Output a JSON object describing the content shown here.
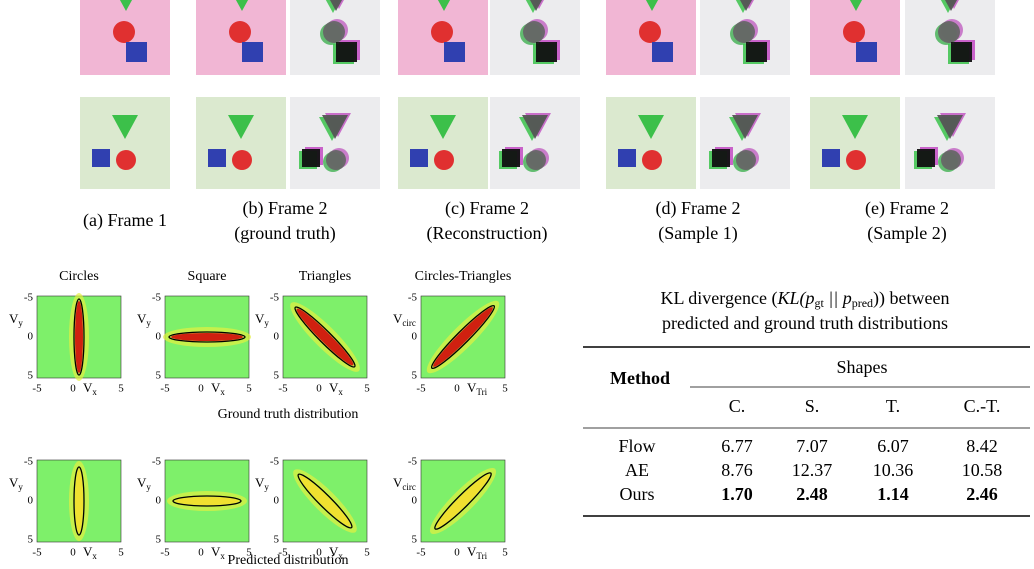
{
  "top_panels": {
    "captions": [
      {
        "lines": [
          "(a) Frame 1"
        ]
      },
      {
        "lines": [
          "(b) Frame 2",
          "(ground truth)"
        ]
      },
      {
        "lines": [
          "(c) Frame 2",
          "(Reconstruction)"
        ]
      },
      {
        "lines": [
          "(d) Frame 2",
          "(Sample 1)"
        ]
      },
      {
        "lines": [
          "(e) Frame 2",
          "(Sample 2)"
        ]
      }
    ]
  },
  "distributions": {
    "titles": [
      "Circles",
      "Square",
      "Triangles",
      "Circles-Triangles"
    ],
    "ticks": [
      -5,
      0,
      5
    ],
    "x_labels": [
      {
        "base": "V",
        "sub": "x"
      },
      {
        "base": "V",
        "sub": "x"
      },
      {
        "base": "V",
        "sub": "x"
      },
      {
        "base": "V",
        "sub": "Tri"
      }
    ],
    "y_labels": [
      {
        "base": "V",
        "sub": "y"
      },
      {
        "base": "V",
        "sub": "y"
      },
      {
        "base": "V",
        "sub": "y"
      },
      {
        "base": "V",
        "sub": "circ"
      }
    ],
    "row_captions": [
      "Ground truth distribution",
      "Predicted distribution"
    ]
  },
  "table": {
    "caption": {
      "line1": [
        "KL divergence (",
        "KL(p",
        "gt",
        " || p",
        "pred",
        ")) between"
      ],
      "line2": "predicted and ground truth distributions"
    },
    "header": {
      "method": "Method",
      "group": "Shapes",
      "columns": [
        "C.",
        "S.",
        "T.",
        "C.-T."
      ]
    },
    "rows": [
      {
        "method": "Flow",
        "values": [
          "6.77",
          "7.07",
          "6.07",
          "8.42"
        ]
      },
      {
        "method": "AE",
        "values": [
          "8.76",
          "12.37",
          "10.36",
          "10.58"
        ]
      },
      {
        "method": "Ours",
        "values": [
          "1.70",
          "2.48",
          "1.14",
          "2.46"
        ],
        "bold": true
      }
    ]
  }
}
